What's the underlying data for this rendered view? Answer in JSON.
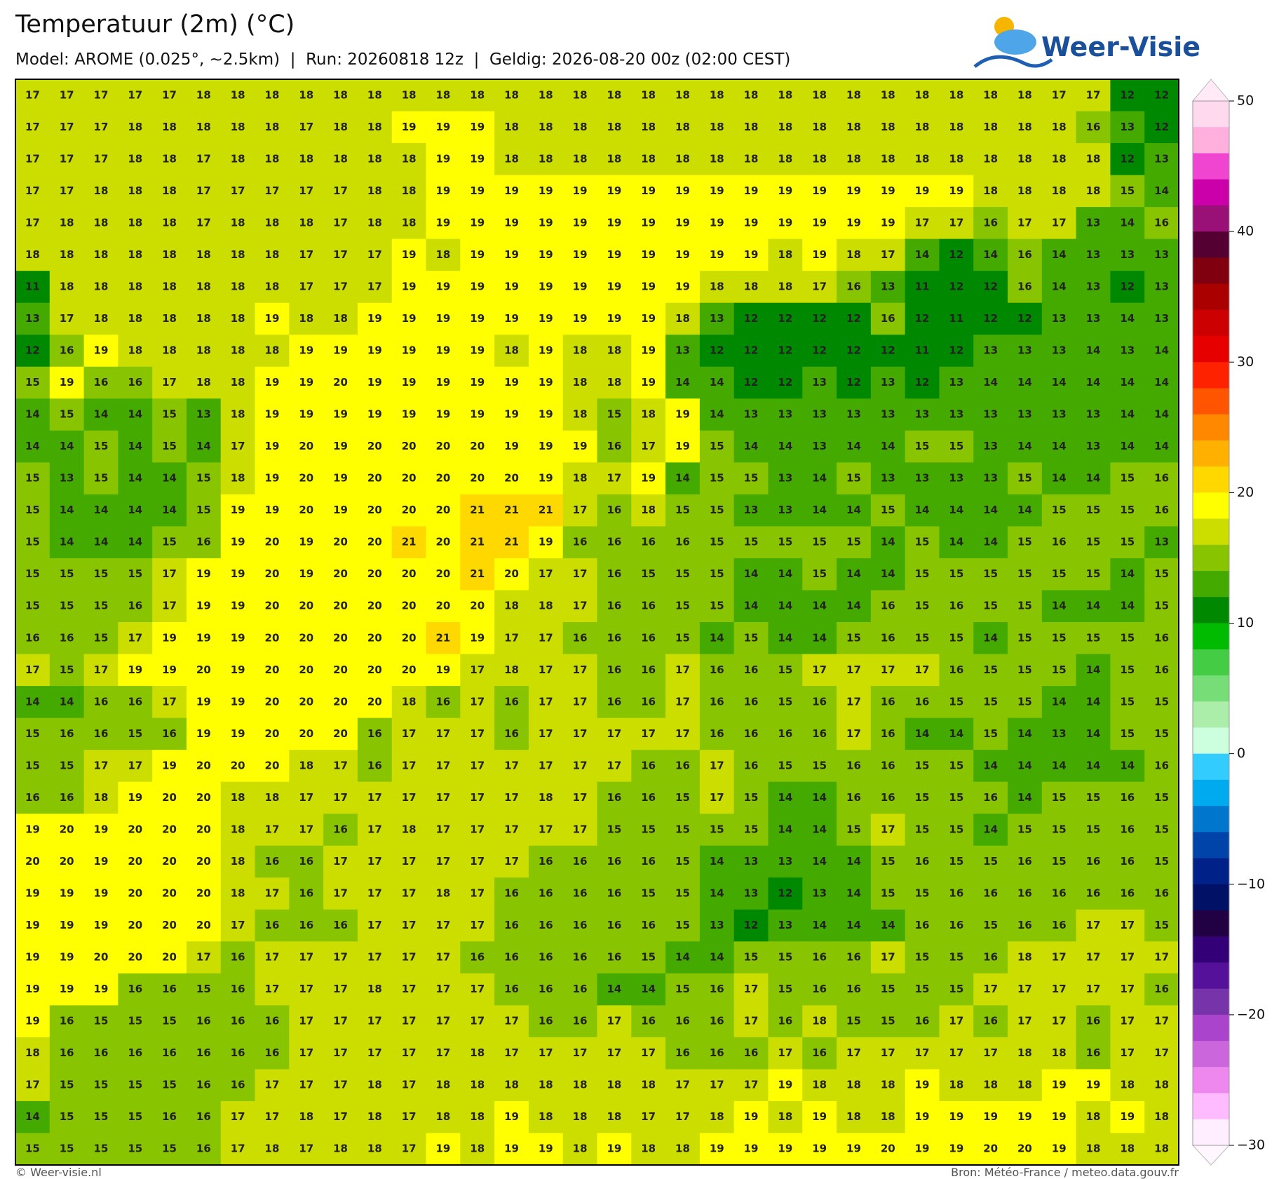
{
  "header": {
    "title": "Temperatuur (2m) (°C)",
    "subtitle": "Model: AROME (0.025°, ~2.5km)  |  Run: 20260818 12z  |  Geldig: 2026-08-20 00z (02:00 CEST)",
    "logo": "Weer-Visie"
  },
  "map": {
    "rows": [
      [
        17,
        17,
        17,
        17,
        17,
        18,
        18,
        18,
        18,
        18,
        18,
        18,
        18,
        18,
        18,
        18,
        18,
        18,
        18,
        18,
        18,
        18,
        18,
        18,
        18,
        18,
        18,
        18,
        18,
        18,
        17,
        17,
        12,
        12
      ],
      [
        17,
        17,
        17,
        18,
        18,
        18,
        18,
        18,
        17,
        18,
        18,
        19,
        19,
        19,
        18,
        18,
        18,
        18,
        18,
        18,
        18,
        18,
        18,
        18,
        18,
        18,
        18,
        18,
        18,
        18,
        18,
        16,
        13,
        12
      ],
      [
        17,
        17,
        17,
        18,
        18,
        17,
        18,
        18,
        18,
        18,
        18,
        18,
        19,
        19,
        18,
        18,
        18,
        18,
        18,
        18,
        18,
        18,
        18,
        18,
        18,
        18,
        18,
        18,
        18,
        18,
        18,
        18,
        12,
        13
      ],
      [
        17,
        17,
        18,
        18,
        18,
        17,
        17,
        17,
        17,
        17,
        18,
        18,
        19,
        19,
        19,
        19,
        19,
        19,
        19,
        19,
        19,
        19,
        19,
        19,
        19,
        19,
        19,
        19,
        18,
        18,
        18,
        18,
        15,
        14
      ],
      [
        17,
        18,
        18,
        18,
        18,
        17,
        18,
        18,
        18,
        17,
        18,
        18,
        19,
        19,
        19,
        19,
        19,
        19,
        19,
        19,
        19,
        19,
        19,
        19,
        19,
        19,
        17,
        17,
        16,
        17,
        17,
        13,
        14,
        16
      ],
      [
        18,
        18,
        18,
        18,
        18,
        18,
        18,
        18,
        17,
        17,
        17,
        19,
        18,
        19,
        19,
        19,
        19,
        19,
        19,
        19,
        19,
        19,
        18,
        19,
        18,
        17,
        14,
        12,
        14,
        16,
        14,
        13,
        13,
        13
      ],
      [
        11,
        18,
        18,
        18,
        18,
        18,
        18,
        18,
        17,
        17,
        17,
        19,
        19,
        19,
        19,
        19,
        19,
        19,
        19,
        19,
        18,
        18,
        18,
        17,
        16,
        13,
        11,
        12,
        12,
        16,
        14,
        13,
        12,
        13
      ],
      [
        13,
        17,
        18,
        18,
        18,
        18,
        18,
        19,
        18,
        18,
        19,
        19,
        19,
        19,
        19,
        19,
        19,
        19,
        19,
        18,
        13,
        12,
        12,
        12,
        12,
        16,
        12,
        11,
        12,
        12,
        13,
        13,
        14,
        13
      ],
      [
        12,
        16,
        19,
        18,
        18,
        18,
        18,
        18,
        19,
        19,
        19,
        19,
        19,
        19,
        18,
        19,
        18,
        18,
        19,
        13,
        12,
        12,
        12,
        12,
        12,
        12,
        11,
        12,
        13,
        13,
        13,
        14,
        13,
        14
      ],
      [
        15,
        19,
        16,
        16,
        17,
        18,
        18,
        19,
        19,
        20,
        19,
        19,
        19,
        19,
        19,
        19,
        18,
        18,
        19,
        14,
        14,
        12,
        12,
        13,
        12,
        13,
        12,
        13,
        14,
        14,
        14,
        14,
        14,
        14
      ],
      [
        14,
        15,
        14,
        14,
        15,
        13,
        18,
        19,
        19,
        19,
        19,
        19,
        19,
        19,
        19,
        19,
        18,
        15,
        18,
        19,
        14,
        13,
        13,
        13,
        13,
        13,
        13,
        13,
        13,
        13,
        13,
        13,
        14,
        14
      ],
      [
        14,
        14,
        15,
        14,
        15,
        14,
        17,
        19,
        20,
        19,
        20,
        20,
        20,
        20,
        19,
        19,
        19,
        16,
        17,
        19,
        15,
        14,
        14,
        13,
        14,
        14,
        15,
        15,
        13,
        14,
        14,
        13,
        14,
        14
      ],
      [
        15,
        13,
        15,
        14,
        14,
        15,
        18,
        19,
        20,
        19,
        20,
        20,
        20,
        20,
        20,
        19,
        18,
        17,
        19,
        14,
        15,
        15,
        13,
        14,
        15,
        13,
        13,
        13,
        13,
        15,
        14,
        14,
        15,
        16
      ],
      [
        15,
        14,
        14,
        14,
        14,
        15,
        19,
        19,
        20,
        19,
        20,
        20,
        20,
        21,
        21,
        21,
        17,
        16,
        18,
        15,
        15,
        13,
        13,
        14,
        14,
        15,
        14,
        14,
        14,
        14,
        15,
        15,
        15,
        16
      ],
      [
        15,
        14,
        14,
        14,
        15,
        16,
        19,
        20,
        19,
        20,
        20,
        21,
        20,
        21,
        21,
        19,
        16,
        16,
        16,
        16,
        15,
        15,
        15,
        15,
        15,
        14,
        15,
        14,
        14,
        15,
        16,
        15,
        15,
        13
      ],
      [
        15,
        15,
        15,
        15,
        17,
        19,
        19,
        20,
        19,
        20,
        20,
        20,
        20,
        21,
        20,
        17,
        17,
        16,
        15,
        15,
        15,
        14,
        14,
        15,
        14,
        14,
        15,
        15,
        15,
        15,
        15,
        15,
        14,
        15
      ],
      [
        15,
        15,
        15,
        16,
        17,
        19,
        19,
        20,
        20,
        20,
        20,
        20,
        20,
        20,
        18,
        18,
        17,
        16,
        16,
        15,
        15,
        14,
        14,
        14,
        14,
        16,
        15,
        16,
        15,
        15,
        14,
        14,
        14,
        15
      ],
      [
        16,
        16,
        15,
        17,
        19,
        19,
        19,
        20,
        20,
        20,
        20,
        20,
        21,
        19,
        17,
        17,
        16,
        16,
        16,
        15,
        14,
        15,
        14,
        14,
        15,
        16,
        15,
        15,
        14,
        15,
        15,
        15,
        15,
        16
      ],
      [
        17,
        15,
        17,
        19,
        19,
        20,
        19,
        20,
        20,
        20,
        20,
        20,
        19,
        17,
        18,
        17,
        17,
        16,
        16,
        17,
        16,
        16,
        15,
        17,
        17,
        17,
        17,
        16,
        15,
        15,
        15,
        14,
        15,
        16
      ],
      [
        14,
        14,
        16,
        16,
        17,
        19,
        19,
        20,
        20,
        20,
        20,
        18,
        16,
        17,
        16,
        17,
        17,
        16,
        16,
        17,
        16,
        16,
        15,
        16,
        17,
        16,
        16,
        15,
        15,
        15,
        14,
        14,
        15,
        15
      ],
      [
        15,
        16,
        16,
        15,
        16,
        19,
        19,
        20,
        20,
        20,
        16,
        17,
        17,
        17,
        16,
        17,
        17,
        17,
        17,
        17,
        16,
        16,
        16,
        16,
        17,
        16,
        14,
        14,
        15,
        14,
        13,
        14,
        15,
        15
      ],
      [
        15,
        15,
        17,
        17,
        19,
        20,
        20,
        20,
        18,
        17,
        16,
        17,
        17,
        17,
        17,
        17,
        17,
        17,
        16,
        16,
        17,
        16,
        15,
        15,
        16,
        16,
        15,
        15,
        14,
        14,
        14,
        14,
        14,
        16
      ],
      [
        16,
        16,
        18,
        19,
        20,
        20,
        18,
        18,
        17,
        17,
        17,
        17,
        17,
        17,
        17,
        18,
        17,
        16,
        16,
        15,
        17,
        15,
        14,
        14,
        16,
        16,
        15,
        15,
        16,
        14,
        15,
        15,
        16,
        15
      ],
      [
        19,
        20,
        19,
        20,
        20,
        20,
        18,
        17,
        17,
        16,
        17,
        18,
        17,
        17,
        17,
        17,
        17,
        15,
        15,
        15,
        15,
        15,
        14,
        14,
        15,
        17,
        15,
        15,
        14,
        15,
        15,
        15,
        16,
        15
      ],
      [
        20,
        20,
        19,
        20,
        20,
        20,
        18,
        16,
        16,
        17,
        17,
        17,
        17,
        17,
        17,
        16,
        16,
        16,
        16,
        15,
        14,
        13,
        13,
        14,
        14,
        15,
        16,
        15,
        15,
        16,
        15,
        16,
        16,
        15
      ],
      [
        19,
        19,
        19,
        20,
        20,
        20,
        18,
        17,
        16,
        17,
        17,
        17,
        18,
        17,
        16,
        16,
        16,
        16,
        15,
        15,
        14,
        13,
        12,
        13,
        14,
        15,
        15,
        16,
        16,
        16,
        16,
        16,
        16,
        16
      ],
      [
        19,
        19,
        19,
        20,
        20,
        20,
        17,
        16,
        16,
        16,
        17,
        17,
        17,
        17,
        16,
        16,
        16,
        16,
        16,
        15,
        13,
        12,
        13,
        14,
        14,
        14,
        16,
        16,
        15,
        16,
        16,
        17,
        17,
        15
      ],
      [
        19,
        19,
        20,
        20,
        20,
        17,
        16,
        17,
        17,
        17,
        17,
        17,
        17,
        16,
        16,
        16,
        16,
        16,
        15,
        14,
        14,
        15,
        15,
        16,
        16,
        17,
        15,
        15,
        16,
        18,
        17,
        17,
        17,
        17
      ],
      [
        19,
        19,
        19,
        16,
        16,
        15,
        16,
        17,
        17,
        17,
        18,
        17,
        17,
        17,
        16,
        16,
        16,
        14,
        14,
        15,
        16,
        17,
        15,
        16,
        16,
        15,
        15,
        15,
        17,
        17,
        17,
        17,
        17,
        16
      ],
      [
        19,
        16,
        15,
        15,
        15,
        16,
        16,
        16,
        17,
        17,
        17,
        17,
        17,
        17,
        17,
        16,
        16,
        17,
        16,
        16,
        16,
        17,
        16,
        18,
        15,
        15,
        16,
        17,
        16,
        17,
        17,
        16,
        17,
        17
      ],
      [
        18,
        16,
        16,
        16,
        16,
        16,
        16,
        16,
        17,
        17,
        17,
        17,
        17,
        18,
        17,
        17,
        17,
        17,
        17,
        16,
        16,
        16,
        17,
        16,
        17,
        17,
        17,
        17,
        17,
        18,
        18,
        16,
        17,
        17
      ],
      [
        17,
        15,
        15,
        15,
        15,
        16,
        16,
        17,
        17,
        17,
        18,
        17,
        18,
        18,
        18,
        18,
        18,
        18,
        18,
        17,
        17,
        17,
        19,
        18,
        18,
        18,
        19,
        18,
        18,
        18,
        19,
        19,
        18,
        18
      ],
      [
        14,
        15,
        15,
        15,
        16,
        16,
        17,
        17,
        18,
        17,
        18,
        17,
        18,
        18,
        19,
        18,
        18,
        18,
        17,
        17,
        18,
        19,
        18,
        19,
        18,
        18,
        19,
        19,
        19,
        19,
        19,
        18,
        19,
        18
      ],
      [
        15,
        15,
        15,
        15,
        15,
        16,
        17,
        18,
        17,
        18,
        18,
        17,
        19,
        18,
        19,
        19,
        18,
        19,
        18,
        18,
        19,
        19,
        19,
        19,
        19,
        20,
        19,
        19,
        20,
        20,
        19,
        18,
        18,
        18
      ]
    ]
  },
  "colorbar": {
    "lim": [
      -30,
      50
    ],
    "step": 2,
    "ticks": [
      50,
      40,
      30,
      20,
      10,
      0,
      {
        "value": -10,
        "label": "−10"
      },
      {
        "value": -20,
        "label": "−20"
      },
      {
        "value": -30,
        "label": "−30"
      }
    ],
    "colors": [
      "#ffd9ee",
      "#ffb0dc",
      "#f045d0",
      "#cc00aa",
      "#991177",
      "#550033",
      "#800010",
      "#aa0000",
      "#cc0000",
      "#e60000",
      "#ff2200",
      "#ff5500",
      "#ff8800",
      "#ffb000",
      "#ffd800",
      "#ffff00",
      "#ccdd00",
      "#88c400",
      "#44aa00",
      "#008800",
      "#00bb00",
      "#44cc44",
      "#77dd77",
      "#aaeeaa",
      "#ccffdd",
      "#33ccff",
      "#00aaee",
      "#0077cc",
      "#0044aa",
      "#002288",
      "#001166",
      "#220044",
      "#330077",
      "#551199",
      "#7733aa",
      "#aa44cc",
      "#cc66dd",
      "#ee88ee",
      "#ffbbff",
      "#ffeeff"
    ]
  },
  "footer": {
    "left": "© Weer-visie.nl",
    "right": "Bron: Météo-France / meteo.data.gouv.fr"
  }
}
